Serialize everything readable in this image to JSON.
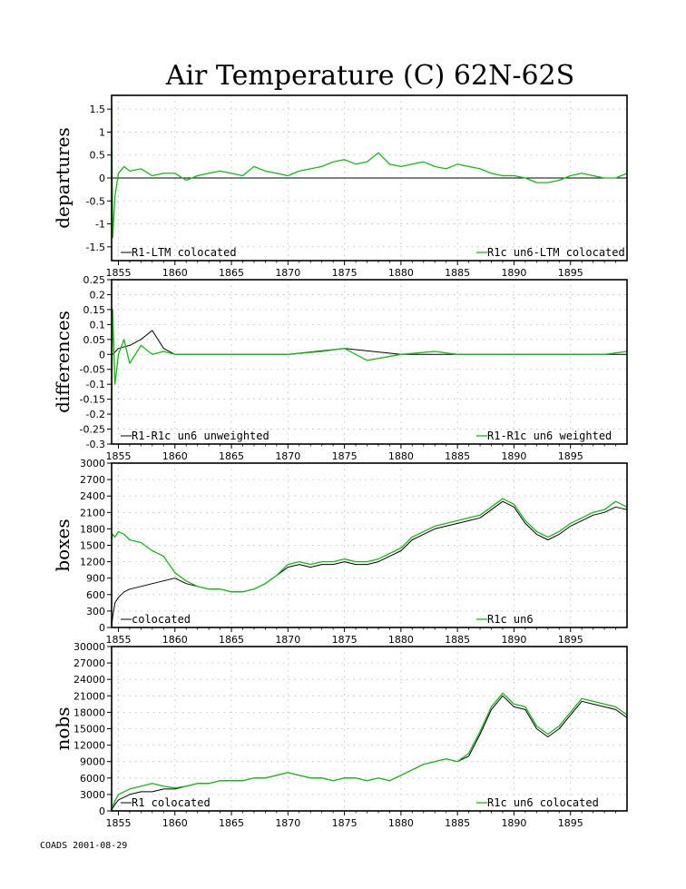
{
  "title": "Air Temperature (C) 62N-62S",
  "footer": "COADS 2001-08-29",
  "colors": {
    "r1": "#000000",
    "r1c": "#16b916",
    "grid": "#b8b8b8"
  },
  "chart_data": [
    {
      "type": "line",
      "ylabel": "departures",
      "xlim": [
        1854.4,
        1900
      ],
      "ylim": [
        -1.8,
        1.8
      ],
      "x_ticks": [
        "1855",
        "1860",
        "1865",
        "1870",
        "1875",
        "1880",
        "1885",
        "1890",
        "1895"
      ],
      "y_ticks": [
        "1.5",
        "1",
        "0.5",
        "0",
        "-0.5",
        "-1",
        "-1.5"
      ],
      "legend": [
        "R1-LTM colocated",
        "R1c un6-LTM colocated"
      ],
      "series": [
        {
          "name": "R1-LTM colocated",
          "color": "#000000",
          "x": [
            1854.5,
            1855,
            1856,
            1860,
            1870,
            1880,
            1890,
            1900
          ],
          "y": [
            0,
            0,
            0,
            0,
            0,
            0,
            0,
            0
          ]
        },
        {
          "name": "R1c un6-LTM colocated",
          "color": "#16b916",
          "x": [
            1854.4,
            1854.5,
            1854.7,
            1855,
            1855.5,
            1856,
            1857,
            1858,
            1859,
            1860,
            1861,
            1862,
            1863,
            1864,
            1865,
            1866,
            1867,
            1868,
            1869,
            1870,
            1871,
            1872,
            1873,
            1874,
            1875,
            1876,
            1877,
            1878,
            1879,
            1880,
            1881,
            1882,
            1883,
            1884,
            1885,
            1886,
            1887,
            1888,
            1889,
            1890,
            1891,
            1892,
            1893,
            1894,
            1895,
            1896,
            1897,
            1898,
            1899,
            1900
          ],
          "y": [
            1.6,
            -1.3,
            -0.4,
            0.1,
            0.25,
            0.15,
            0.2,
            0.05,
            0.1,
            0.1,
            -0.05,
            0.05,
            0.1,
            0.15,
            0.1,
            0.05,
            0.25,
            0.15,
            0.1,
            0.05,
            0.15,
            0.2,
            0.25,
            0.35,
            0.4,
            0.3,
            0.35,
            0.55,
            0.3,
            0.25,
            0.3,
            0.35,
            0.25,
            0.2,
            0.3,
            0.25,
            0.2,
            0.1,
            0.05,
            0.05,
            0.0,
            -0.1,
            -0.1,
            -0.05,
            0.05,
            0.1,
            0.05,
            0.0,
            0.0,
            0.1
          ]
        }
      ]
    },
    {
      "type": "line",
      "ylabel": "differences",
      "xlim": [
        1854.4,
        1900
      ],
      "ylim": [
        -0.3,
        0.25
      ],
      "x_ticks": [
        "1855",
        "1860",
        "1865",
        "1870",
        "1875",
        "1880",
        "1885",
        "1890",
        "1895"
      ],
      "y_ticks": [
        "0.25",
        "0.2",
        "0.15",
        "0.1",
        "0.05",
        "0",
        "-0.05",
        "-0.1",
        "-0.15",
        "-0.2",
        "-0.25",
        "-0.3"
      ],
      "legend": [
        "R1-R1c un6 unweighted",
        "R1-R1c un6 weighted"
      ],
      "series": [
        {
          "name": "R1-R1c un6 unweighted",
          "color": "#000000",
          "x": [
            1854.5,
            1855,
            1856,
            1857,
            1858,
            1859,
            1860,
            1865,
            1870,
            1875,
            1880,
            1885,
            1890,
            1895,
            1900
          ],
          "y": [
            0.0,
            0.02,
            0.03,
            0.05,
            0.08,
            0.02,
            0.0,
            0.0,
            0.0,
            0.02,
            0.0,
            0.0,
            0.0,
            0.0,
            0.0
          ]
        },
        {
          "name": "R1-R1c un6 weighted",
          "color": "#16b916",
          "x": [
            1854.4,
            1854.5,
            1854.7,
            1855,
            1855.5,
            1856,
            1857,
            1858,
            1859,
            1860,
            1862,
            1865,
            1868,
            1870,
            1873,
            1875,
            1877,
            1880,
            1883,
            1885,
            1888,
            1890,
            1893,
            1895,
            1898,
            1900
          ],
          "y": [
            -0.2,
            0.15,
            -0.1,
            0.0,
            0.05,
            -0.03,
            0.03,
            0.0,
            0.01,
            0.0,
            0.0,
            0.0,
            0.0,
            0.0,
            0.01,
            0.02,
            -0.02,
            0.0,
            0.01,
            0.0,
            0.0,
            0.0,
            0.0,
            0.0,
            0.0,
            0.01
          ]
        }
      ]
    },
    {
      "type": "line",
      "ylabel": "boxes",
      "xlim": [
        1854.4,
        1900
      ],
      "ylim": [
        0,
        3000
      ],
      "x_ticks": [
        "1855",
        "1860",
        "1865",
        "1870",
        "1875",
        "1880",
        "1885",
        "1890",
        "1895"
      ],
      "y_ticks": [
        "3000",
        "2700",
        "2400",
        "2100",
        "1800",
        "1500",
        "1200",
        "900",
        "600",
        "300",
        "0"
      ],
      "legend": [
        "colocated",
        "R1c un6"
      ],
      "series": [
        {
          "name": "colocated",
          "color": "#000000",
          "x": [
            1854.4,
            1854.5,
            1854.7,
            1855,
            1855.5,
            1856,
            1857,
            1858,
            1859,
            1860,
            1861,
            1862,
            1863,
            1864,
            1865,
            1866,
            1867,
            1868,
            1869,
            1870,
            1871,
            1872,
            1873,
            1874,
            1875,
            1876,
            1877,
            1878,
            1879,
            1880,
            1881,
            1882,
            1883,
            1884,
            1885,
            1886,
            1887,
            1888,
            1889,
            1890,
            1891,
            1892,
            1893,
            1894,
            1895,
            1896,
            1897,
            1898,
            1899,
            1900
          ],
          "y": [
            0,
            200,
            450,
            550,
            650,
            700,
            750,
            800,
            850,
            900,
            800,
            750,
            700,
            700,
            650,
            650,
            700,
            800,
            950,
            1100,
            1150,
            1100,
            1150,
            1150,
            1200,
            1150,
            1150,
            1200,
            1300,
            1400,
            1600,
            1700,
            1800,
            1850,
            1900,
            1950,
            2000,
            2150,
            2300,
            2200,
            1900,
            1700,
            1600,
            1700,
            1850,
            1950,
            2050,
            2100,
            2200,
            2150
          ]
        },
        {
          "name": "R1c un6",
          "color": "#16b916",
          "x": [
            1854.4,
            1854.5,
            1854.7,
            1855,
            1855.5,
            1856,
            1857,
            1858,
            1859,
            1860,
            1861,
            1862,
            1863,
            1864,
            1865,
            1866,
            1867,
            1868,
            1869,
            1870,
            1871,
            1872,
            1873,
            1874,
            1875,
            1876,
            1877,
            1878,
            1879,
            1880,
            1881,
            1882,
            1883,
            1884,
            1885,
            1886,
            1887,
            1888,
            1889,
            1890,
            1891,
            1892,
            1893,
            1894,
            1895,
            1896,
            1897,
            1898,
            1899,
            1900
          ],
          "y": [
            1600,
            1700,
            1650,
            1750,
            1700,
            1600,
            1550,
            1400,
            1300,
            1000,
            850,
            750,
            700,
            700,
            650,
            650,
            700,
            800,
            950,
            1150,
            1200,
            1150,
            1200,
            1200,
            1250,
            1200,
            1200,
            1250,
            1350,
            1450,
            1650,
            1750,
            1850,
            1900,
            1950,
            2000,
            2050,
            2200,
            2350,
            2250,
            1950,
            1750,
            1650,
            1750,
            1900,
            2000,
            2100,
            2150,
            2300,
            2200
          ]
        }
      ]
    },
    {
      "type": "line",
      "ylabel": "nobs",
      "xlim": [
        1854.4,
        1900
      ],
      "ylim": [
        0,
        30000
      ],
      "x_ticks": [
        "1855",
        "1860",
        "1865",
        "1870",
        "1875",
        "1880",
        "1885",
        "1890",
        "1895"
      ],
      "y_ticks": [
        "30000",
        "27000",
        "24000",
        "21000",
        "18000",
        "15000",
        "12000",
        "9000",
        "6000",
        "3000",
        "0"
      ],
      "legend": [
        "R1 colocated",
        "R1c un6 colocated"
      ],
      "series": [
        {
          "name": "R1 colocated",
          "color": "#000000",
          "x": [
            1854.4,
            1854.5,
            1854.7,
            1855,
            1855.5,
            1856,
            1857,
            1858,
            1859,
            1860,
            1861,
            1862,
            1863,
            1864,
            1865,
            1866,
            1867,
            1868,
            1869,
            1870,
            1871,
            1872,
            1873,
            1874,
            1875,
            1876,
            1877,
            1878,
            1879,
            1880,
            1881,
            1882,
            1883,
            1884,
            1885,
            1886,
            1887,
            1888,
            1889,
            1890,
            1891,
            1892,
            1893,
            1894,
            1895,
            1896,
            1897,
            1898,
            1899,
            1900
          ],
          "y": [
            0,
            500,
            1200,
            2000,
            2500,
            3000,
            3500,
            3500,
            4000,
            4000,
            4500,
            5000,
            5000,
            5500,
            5500,
            5500,
            6000,
            6000,
            6500,
            7000,
            6500,
            6000,
            6000,
            5500,
            6000,
            6000,
            5500,
            6000,
            5500,
            6500,
            7500,
            8500,
            9000,
            9500,
            9000,
            10000,
            14000,
            18500,
            21000,
            19000,
            18500,
            15000,
            13500,
            15000,
            17500,
            20000,
            19500,
            19000,
            18500,
            17000
          ]
        },
        {
          "name": "R1c un6 colocated",
          "color": "#16b916",
          "x": [
            1854.4,
            1854.5,
            1854.7,
            1855,
            1855.5,
            1856,
            1857,
            1858,
            1859,
            1860,
            1861,
            1862,
            1863,
            1864,
            1865,
            1866,
            1867,
            1868,
            1869,
            1870,
            1871,
            1872,
            1873,
            1874,
            1875,
            1876,
            1877,
            1878,
            1879,
            1880,
            1881,
            1882,
            1883,
            1884,
            1885,
            1886,
            1887,
            1888,
            1889,
            1890,
            1891,
            1892,
            1893,
            1894,
            1895,
            1896,
            1897,
            1898,
            1899,
            1900
          ],
          "y": [
            0,
            800,
            1800,
            3000,
            3500,
            4000,
            4500,
            5000,
            4500,
            4200,
            4500,
            5000,
            5000,
            5500,
            5500,
            5500,
            6000,
            6000,
            6500,
            7000,
            6500,
            6000,
            6000,
            5500,
            6000,
            6000,
            5500,
            6000,
            5500,
            6500,
            7500,
            8500,
            9000,
            9500,
            9000,
            10500,
            14500,
            19000,
            21500,
            19500,
            19000,
            15500,
            14000,
            15500,
            18000,
            20500,
            20000,
            19500,
            19000,
            17500
          ]
        }
      ]
    }
  ]
}
